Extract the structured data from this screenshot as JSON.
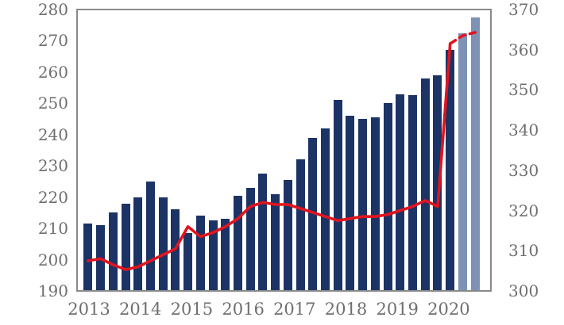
{
  "chart_data": {
    "type": "bar",
    "subtype": "bar-line-combo-dual-axis",
    "title": "",
    "categories": [
      "2013 Q1",
      "2013 Q2",
      "2013 Q3",
      "2013 Q4",
      "2014 Q1",
      "2014 Q2",
      "2014 Q3",
      "2014 Q4",
      "2015 Q1",
      "2015 Q2",
      "2015 Q3",
      "2015 Q4",
      "2016 Q1",
      "2016 Q2",
      "2016 Q3",
      "2016 Q4",
      "2017 Q1",
      "2017 Q2",
      "2017 Q3",
      "2017 Q4",
      "2018 Q1",
      "2018 Q2",
      "2018 Q3",
      "2018 Q4",
      "2019 Q1",
      "2019 Q2",
      "2019 Q3",
      "2019 Q4",
      "2020 Q1",
      "2020 Q2",
      "2020 Q3",
      "2020 Q4"
    ],
    "series": [
      {
        "name": "bars-left-axis",
        "type": "bar",
        "axis": "left",
        "values": [
          211.5,
          211,
          215,
          218,
          220,
          225,
          220,
          216,
          208.5,
          214,
          212.5,
          213,
          220.5,
          223,
          227.5,
          221,
          225.5,
          232,
          239,
          242,
          251,
          246,
          245,
          245.5,
          250,
          253,
          252.5,
          258,
          259,
          267,
          272.5,
          277.5
        ],
        "forecast_from_index": 30
      },
      {
        "name": "line-right-axis",
        "type": "line",
        "axis": "right",
        "values": [
          307.5,
          308,
          306.5,
          305.3,
          306,
          307.5,
          309,
          310.5,
          316,
          313.5,
          314.5,
          316,
          318,
          321,
          322,
          321.5,
          321.5,
          320.5,
          319.5,
          318.5,
          317.5,
          318,
          318.5,
          318.5,
          319,
          320,
          321,
          322.5,
          321,
          361.5,
          363.5,
          364.3
        ],
        "dashed_from_index": 29
      }
    ],
    "left_axis": {
      "min": 190,
      "max": 280,
      "step": 10,
      "tick_labels": [
        "280",
        "270",
        "260",
        "250",
        "240",
        "230",
        "220",
        "210",
        "200",
        "190"
      ]
    },
    "right_axis": {
      "min": 300,
      "max": 370,
      "step": 10,
      "tick_labels": [
        "370",
        "360",
        "350",
        "340",
        "330",
        "320",
        "310",
        "300"
      ]
    },
    "x_tick_labels": [
      "2013",
      "2014",
      "2015",
      "2016",
      "2017",
      "2018",
      "2019",
      "2020"
    ],
    "grid": "off",
    "legend": "none",
    "colors": {
      "bar": "#1c3366",
      "bar_forecast": "#7d92b5",
      "line": "#e1141e",
      "axis_text": "#6f6f6f",
      "plot_border": "#898989",
      "background": "#ffffff"
    }
  }
}
